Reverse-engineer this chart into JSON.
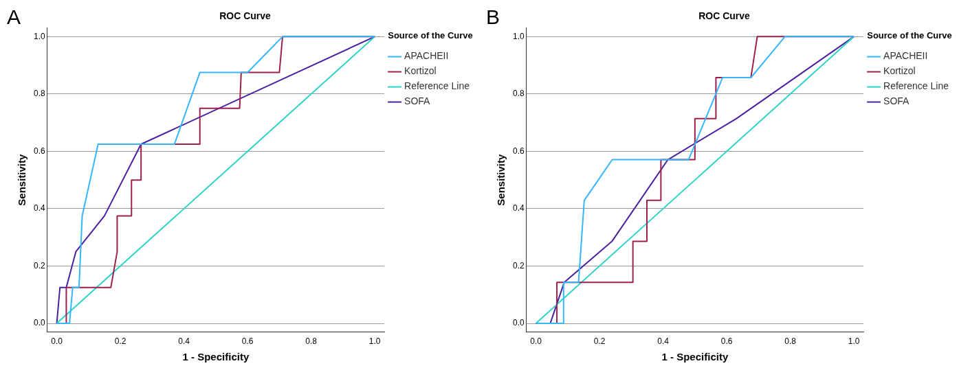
{
  "chart_data": [
    {
      "type": "line",
      "title": "ROC Curve",
      "xlabel": "1 - Specificity",
      "ylabel": "Sensitivity",
      "legend_title": "Source of the Curve",
      "annotations": [
        "A"
      ],
      "xlim": [
        -0.03,
        1.03
      ],
      "ylim": [
        -0.03,
        1.03
      ],
      "xticks": [
        {
          "value": 0,
          "label": "0.0"
        },
        {
          "value": 0.2,
          "label": "0.2"
        },
        {
          "value": 0.4,
          "label": "0.4"
        },
        {
          "value": 0.6,
          "label": "0.6"
        },
        {
          "value": 0.8,
          "label": "0.8"
        },
        {
          "value": 1,
          "label": "1.0"
        }
      ],
      "yticks": [
        {
          "value": 0,
          "label": "0.0"
        },
        {
          "value": 0.2,
          "label": "0.2"
        },
        {
          "value": 0.4,
          "label": "0.4"
        },
        {
          "value": 0.6,
          "label": "0.6"
        },
        {
          "value": 0.8,
          "label": "0.8"
        },
        {
          "value": 1,
          "label": "1.0"
        }
      ],
      "grid": "y",
      "legend": "right",
      "series": [
        {
          "name": "APACHEII",
          "color": "#33b5ff",
          "x": [
            0,
            0.04,
            0.05,
            0.07,
            0.08,
            0.13,
            0.37,
            0.45,
            0.6,
            0.71,
            1
          ],
          "values": [
            0,
            0,
            0.125,
            0.125,
            0.375,
            0.625,
            0.625,
            0.875,
            0.875,
            1,
            1
          ]
        },
        {
          "name": "Kortizol",
          "color": "#9e1f4f",
          "x": [
            0,
            0.03,
            0.03,
            0.17,
            0.19,
            0.19,
            0.235,
            0.235,
            0.265,
            0.265,
            0.45,
            0.45,
            0.575,
            0.58,
            0.7,
            0.71,
            1
          ],
          "values": [
            0,
            0,
            0.125,
            0.125,
            0.25,
            0.375,
            0.375,
            0.5,
            0.5,
            0.625,
            0.625,
            0.75,
            0.75,
            0.875,
            0.875,
            1,
            1
          ]
        },
        {
          "name": "Reference Line",
          "color": "#2ed3c8",
          "x": [
            0,
            1
          ],
          "values": [
            0,
            1
          ]
        },
        {
          "name": "SOFA",
          "color": "#4b1fa0",
          "x": [
            0,
            0.01,
            0.03,
            0.06,
            0.15,
            0.265,
            1
          ],
          "values": [
            0,
            0.125,
            0.125,
            0.25,
            0.375,
            0.625,
            1
          ]
        }
      ]
    },
    {
      "type": "line",
      "title": "ROC Curve",
      "xlabel": "1 - Specificity",
      "ylabel": "Sensitivity",
      "legend_title": "Source of the Curve",
      "annotations": [
        "B"
      ],
      "xlim": [
        -0.03,
        1.03
      ],
      "ylim": [
        -0.03,
        1.03
      ],
      "xticks": [
        {
          "value": 0,
          "label": "0.0"
        },
        {
          "value": 0.2,
          "label": "0.2"
        },
        {
          "value": 0.4,
          "label": "0.4"
        },
        {
          "value": 0.6,
          "label": "0.6"
        },
        {
          "value": 0.8,
          "label": "0.8"
        },
        {
          "value": 1,
          "label": "1.0"
        }
      ],
      "yticks": [
        {
          "value": 0,
          "label": "0.0"
        },
        {
          "value": 0.2,
          "label": "0.2"
        },
        {
          "value": 0.4,
          "label": "0.4"
        },
        {
          "value": 0.6,
          "label": "0.6"
        },
        {
          "value": 0.8,
          "label": "0.8"
        },
        {
          "value": 1,
          "label": "1.0"
        }
      ],
      "grid": "y",
      "legend": "right",
      "series": [
        {
          "name": "APACHEII",
          "color": "#33b5ff",
          "x": [
            0,
            0.087,
            0.087,
            0.134,
            0.152,
            0.24,
            0.48,
            0.587,
            0.676,
            0.783,
            1
          ],
          "values": [
            0,
            0,
            0.143,
            0.143,
            0.429,
            0.571,
            0.571,
            0.857,
            0.857,
            1,
            1
          ]
        },
        {
          "name": "Kortizol",
          "color": "#9e1f4f",
          "x": [
            0,
            0.066,
            0.066,
            0.305,
            0.305,
            0.349,
            0.349,
            0.393,
            0.393,
            0.5,
            0.5,
            0.566,
            0.566,
            0.676,
            0.696,
            1
          ],
          "values": [
            0,
            0,
            0.143,
            0.143,
            0.286,
            0.286,
            0.429,
            0.429,
            0.571,
            0.571,
            0.714,
            0.714,
            0.857,
            0.857,
            1,
            1
          ]
        },
        {
          "name": "Reference Line",
          "color": "#2ed3c8",
          "x": [
            0,
            1
          ],
          "values": [
            0,
            1
          ]
        },
        {
          "name": "SOFA",
          "color": "#4b1fa0",
          "x": [
            0,
            0.045,
            0.089,
            0.239,
            0.415,
            0.63,
            1
          ],
          "values": [
            0,
            0,
            0.143,
            0.286,
            0.571,
            0.714,
            1
          ]
        }
      ]
    }
  ]
}
